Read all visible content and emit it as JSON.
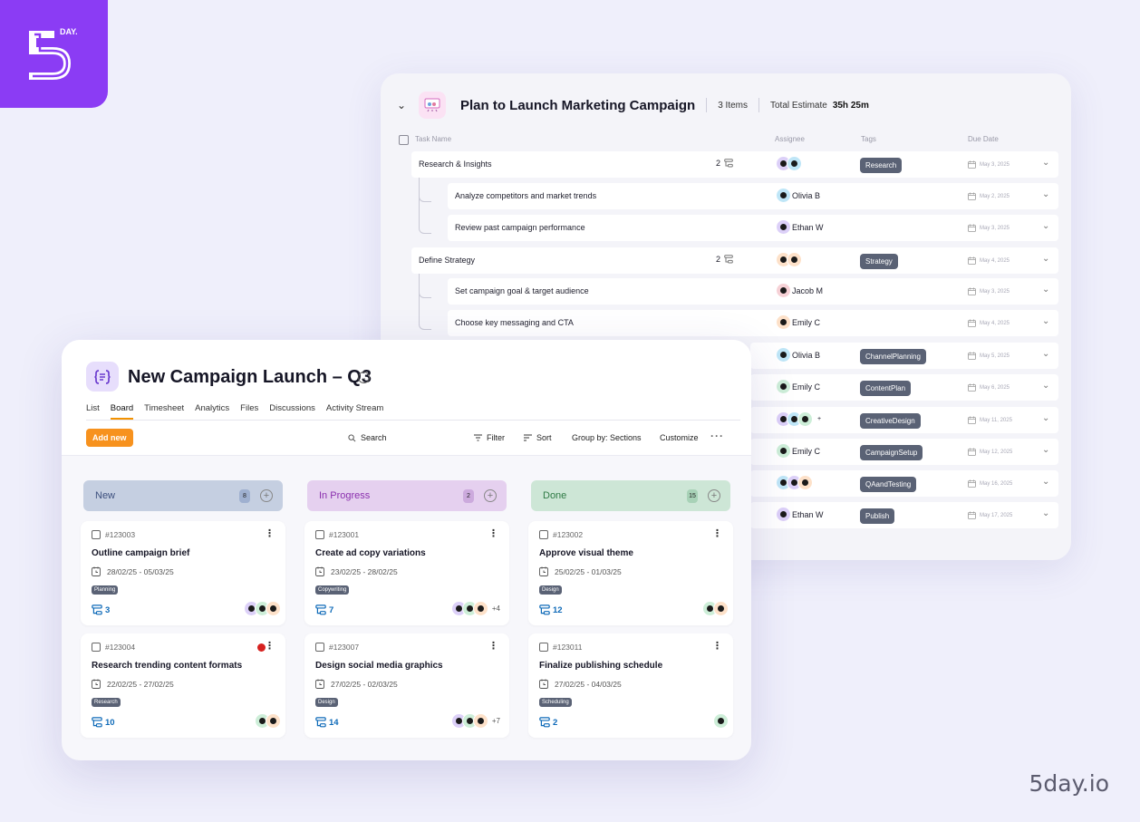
{
  "brand": {
    "logo_text": "DAY.",
    "site": "5day.io"
  },
  "list_view": {
    "title": "Plan to Launch Marketing Campaign",
    "items_count": "3 Items",
    "total_estimate_label": "Total Estimate",
    "total_estimate_value": "35h 25m",
    "columns": {
      "task": "Task Name",
      "assignee": "Assignee",
      "tags": "Tags",
      "due": "Due Date"
    },
    "rows": [
      {
        "name": "Research & Insights",
        "subtasks": "2",
        "assignee": "",
        "tag": "Research",
        "due": "May 3, 2025"
      },
      {
        "name": "Analyze competitors and market trends",
        "assignee": "Olivia B",
        "tag": "",
        "due": "May 2, 2025"
      },
      {
        "name": "Review past campaign performance",
        "assignee": "Ethan W",
        "tag": "",
        "due": "May 3, 2025"
      },
      {
        "name": "Define Strategy",
        "subtasks": "2",
        "assignee": "",
        "tag": "Strategy",
        "due": "May 4, 2025"
      },
      {
        "name": "Set campaign goal & target audience",
        "assignee": "Jacob M",
        "tag": "",
        "due": "May 3, 2025"
      },
      {
        "name": "Choose key messaging and CTA",
        "assignee": "Emily C",
        "tag": "",
        "due": "May 4, 2025"
      },
      {
        "name": "",
        "assignee": "Olivia B",
        "tag": "ChannelPlanning",
        "due": "May 5, 2025"
      },
      {
        "name": "",
        "assignee": "Emily C",
        "tag": "ContentPlan",
        "due": "May 6, 2025"
      },
      {
        "name": "",
        "assignee": "+",
        "tag": "CreativeDesign",
        "due": "May 11, 2025"
      },
      {
        "name": "",
        "assignee": "Emily C",
        "tag": "CampaignSetup",
        "due": "May 12, 2025"
      },
      {
        "name": "",
        "assignee": "",
        "tag": "QAandTesting",
        "due": "May 16, 2025"
      },
      {
        "name": "",
        "assignee": "Ethan W",
        "tag": "Publish",
        "due": "May 17, 2025"
      }
    ]
  },
  "board": {
    "title": "New Campaign Launch – Q3",
    "tabs": [
      "List",
      "Board",
      "Timesheet",
      "Analytics",
      "Files",
      "Discussions",
      "Activity Stream"
    ],
    "active_tab": "Board",
    "add_new": "Add new",
    "search": "Search",
    "filter": "Filter",
    "sort": "Sort",
    "group_by": "Group by: Sections",
    "customize": "Customize",
    "columns": [
      {
        "name": "New",
        "count": "8",
        "color": "#c5cfe1",
        "text_color": "#3c4f7d",
        "count_bg": "#9fb0d0",
        "cards": [
          {
            "id": "#123003",
            "title": "Outline campaign brief",
            "date": "28/02/25 - 05/03/25",
            "tag": "Planning",
            "subtasks": "3",
            "more": "",
            "alert": false
          },
          {
            "id": "#123004",
            "title": "Research trending content formats",
            "date": "22/02/25 - 27/02/25",
            "tag": "Research",
            "subtasks": "10",
            "more": "",
            "alert": true
          }
        ]
      },
      {
        "name": "In Progress",
        "count": "2",
        "color": "#e5d0ef",
        "text_color": "#8a2fae",
        "count_bg": "#ccaadd",
        "cards": [
          {
            "id": "#123001",
            "title": "Create ad copy variations",
            "date": "23/02/25 - 28/02/25",
            "tag": "Copywriting",
            "subtasks": "7",
            "more": "+4",
            "alert": false
          },
          {
            "id": "#123007",
            "title": "Design social media graphics",
            "date": "27/02/25 - 02/03/25",
            "tag": "Design",
            "subtasks": "14",
            "more": "+7",
            "alert": false
          }
        ]
      },
      {
        "name": "Done",
        "count": "15",
        "color": "#cde6d6",
        "text_color": "#2f7a45",
        "count_bg": "#a8d2b7",
        "cards": [
          {
            "id": "#123002",
            "title": "Approve visual theme",
            "date": "25/02/25 - 01/03/25",
            "tag": "Design",
            "subtasks": "12",
            "more": "",
            "alert": false
          },
          {
            "id": "#123011",
            "title": "Finalize publishing schedule",
            "date": "27/02/25 - 04/03/25",
            "tag": "Scheduling",
            "subtasks": "2",
            "more": "",
            "alert": false
          }
        ]
      }
    ]
  }
}
